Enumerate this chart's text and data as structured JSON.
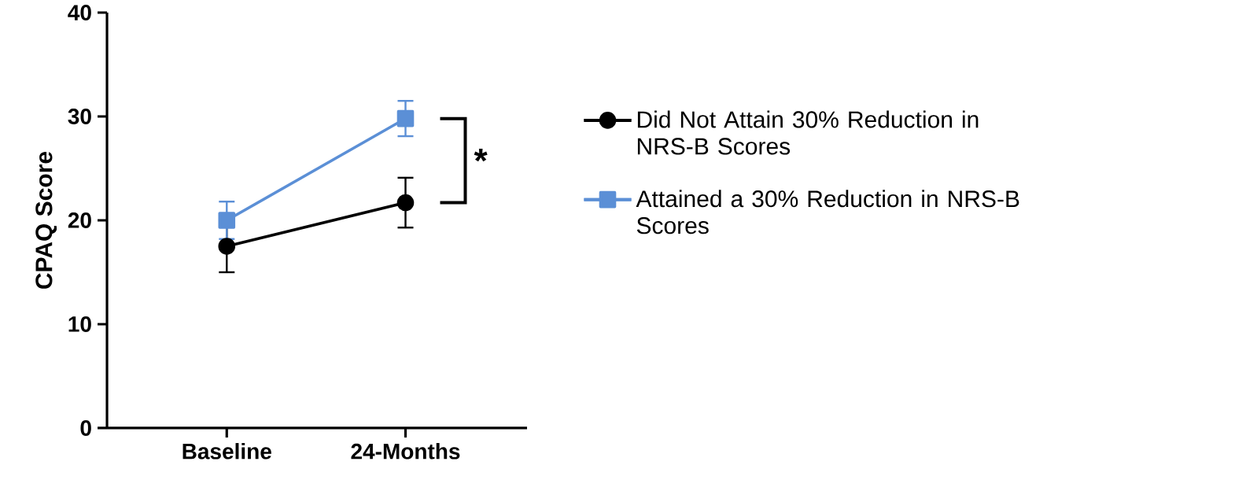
{
  "chart_data": {
    "type": "line",
    "ylabel": "CPAQ Score",
    "categories": [
      "Baseline",
      "24-Months"
    ],
    "series": [
      {
        "name": "Did Not Attain 30% Reduction in NRS-B Scores",
        "color": "#000000",
        "marker": "circle",
        "values": [
          17.5,
          21.7
        ],
        "errors": [
          2.5,
          2.4
        ]
      },
      {
        "name": "Attained a 30% Reduction in NRS-B Scores",
        "color": "#5b8fd6",
        "marker": "square",
        "values": [
          20.0,
          29.8
        ],
        "errors": [
          1.8,
          1.7
        ]
      }
    ],
    "ylim": [
      0,
      40
    ],
    "yticks": [
      0,
      10,
      20,
      30,
      40
    ],
    "grid": false,
    "legend": "right",
    "annotations": [
      "*"
    ]
  }
}
